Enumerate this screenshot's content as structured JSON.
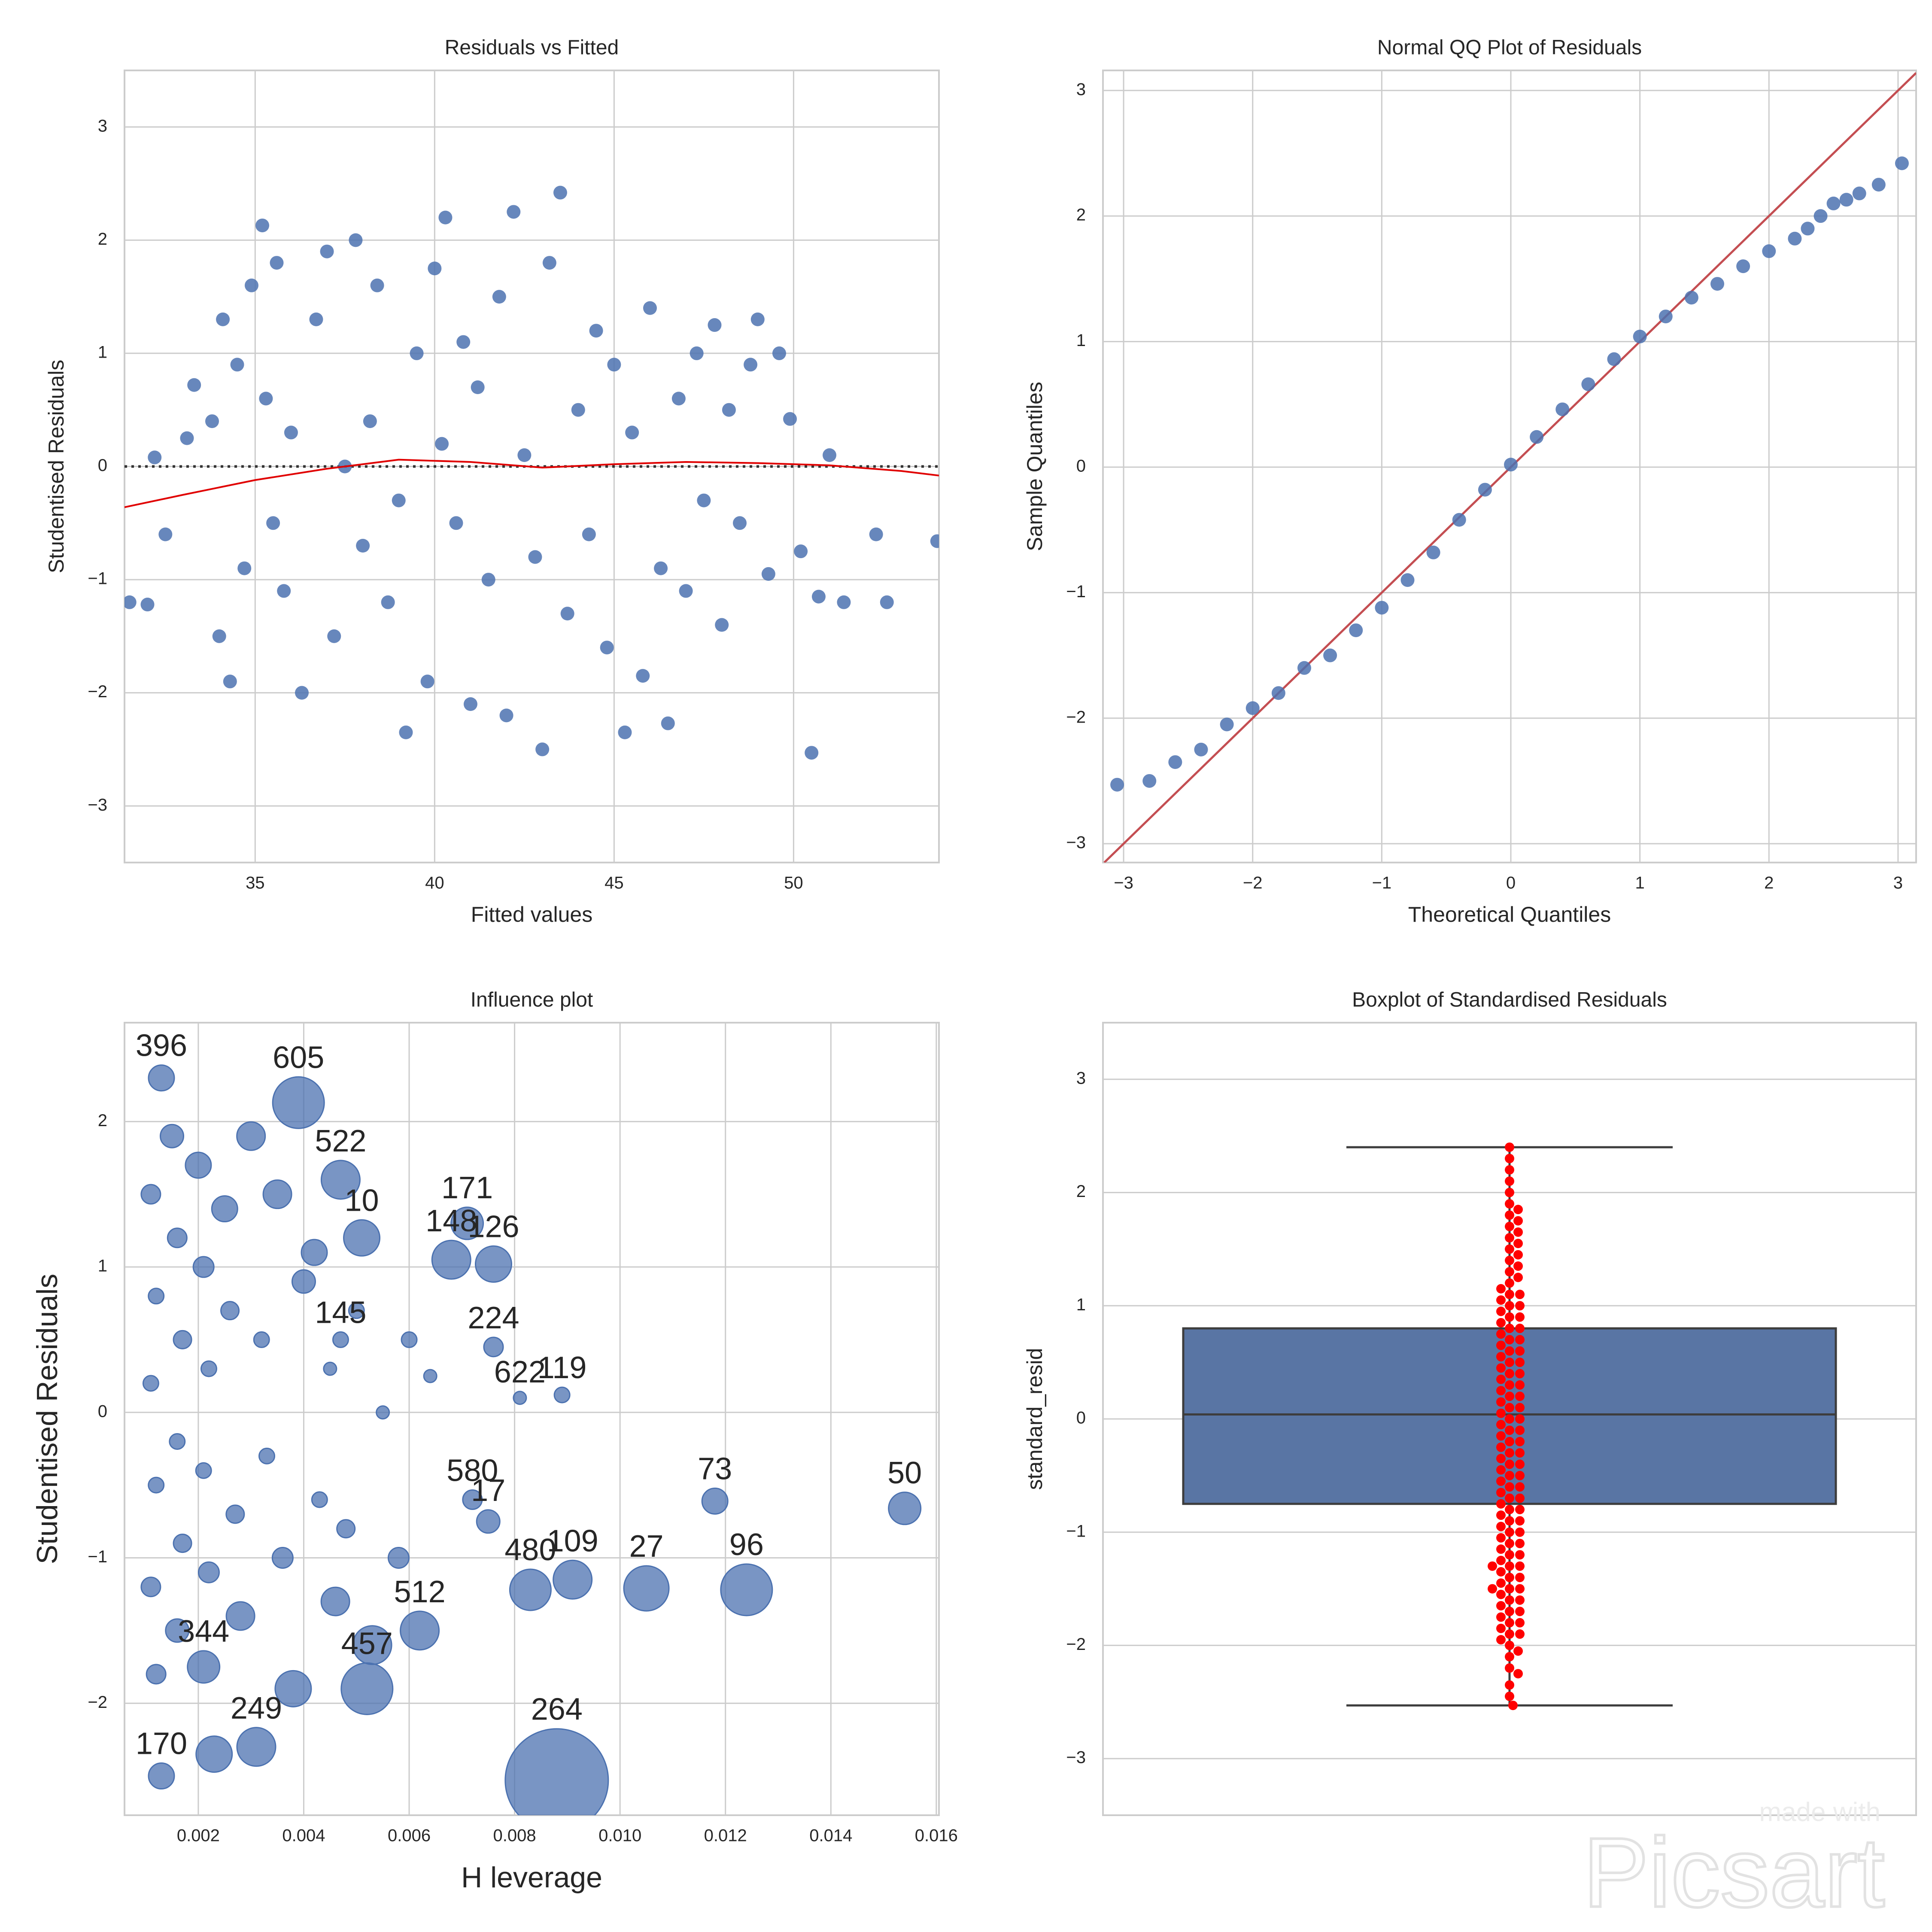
{
  "chart_data": [
    {
      "type": "scatter",
      "title": "Residuals vs Fitted",
      "xlabel": "Fitted values",
      "ylabel": "Studentised Residuals",
      "xlim": [
        31.36,
        54.05
      ],
      "ylim": [
        -3.5,
        3.5
      ],
      "grid": true,
      "xticks": [
        35,
        40,
        45,
        50
      ],
      "yticks": [
        {
          "value": -3,
          "label": "−3"
        },
        {
          "value": -2,
          "label": "−2"
        },
        {
          "value": -1,
          "label": "−1"
        },
        0,
        1,
        2,
        3
      ],
      "points": {
        "color": "#4c72b0",
        "x": [
          31.5,
          32,
          32.2,
          32.5,
          33.1,
          33.3,
          33.8,
          34.0,
          34.1,
          34.3,
          34.5,
          34.7,
          34.9,
          35.2,
          35.3,
          35.5,
          35.6,
          35.8,
          36.0,
          36.3,
          36.7,
          37.0,
          37.2,
          37.5,
          37.8,
          38.0,
          38.2,
          38.4,
          38.7,
          39.0,
          39.2,
          39.5,
          39.8,
          40.0,
          40.2,
          40.3,
          40.6,
          40.8,
          41.0,
          41.2,
          41.5,
          41.8,
          42.0,
          42.2,
          42.5,
          42.8,
          43.0,
          43.2,
          43.5,
          43.7,
          44.0,
          44.3,
          44.5,
          44.8,
          45.0,
          45.3,
          45.5,
          45.8,
          46.0,
          46.3,
          46.5,
          46.8,
          47.0,
          47.3,
          47.5,
          47.8,
          48.0,
          48.2,
          48.5,
          48.8,
          49.0,
          49.3,
          49.6,
          49.9,
          50.2,
          50.5,
          50.7,
          51.0,
          51.4,
          52.3,
          52.6,
          54.0
        ],
        "y": [
          -1.2,
          -1.22,
          0.08,
          -0.6,
          0.25,
          0.72,
          0.4,
          -1.5,
          1.3,
          -1.9,
          0.9,
          -0.9,
          1.6,
          2.13,
          0.6,
          -0.5,
          1.8,
          -1.1,
          0.3,
          -2.0,
          1.3,
          1.9,
          -1.5,
          0.0,
          2.0,
          -0.7,
          0.4,
          1.6,
          -1.2,
          -0.3,
          -2.35,
          1.0,
          -1.9,
          1.75,
          0.2,
          2.2,
          -0.5,
          1.1,
          -2.1,
          0.7,
          -1.0,
          1.5,
          -2.2,
          2.25,
          0.1,
          -0.8,
          -2.5,
          1.8,
          2.42,
          -1.3,
          0.5,
          -0.6,
          1.2,
          -1.6,
          0.9,
          -2.35,
          0.3,
          -1.85,
          1.4,
          -0.9,
          -2.27,
          0.6,
          -1.1,
          1.0,
          -0.3,
          1.25,
          -1.4,
          0.5,
          -0.5,
          0.9,
          1.3,
          -0.95,
          1.0,
          0.42,
          -0.75,
          -2.53,
          -1.15,
          0.1,
          -1.2,
          -0.6,
          -1.2,
          -0.66
        ]
      },
      "reference_y": 0,
      "curve": {
        "color": "#e00000",
        "x": [
          31.36,
          33,
          35,
          37,
          39,
          41,
          43,
          45,
          47,
          49,
          51,
          53,
          54.05
        ],
        "y": [
          -0.36,
          -0.25,
          -0.12,
          -0.02,
          0.06,
          0.04,
          -0.01,
          0.02,
          0.04,
          0.03,
          0.01,
          -0.04,
          -0.08
        ]
      }
    },
    {
      "type": "scatter",
      "title": "Normal QQ Plot of Residuals",
      "xlabel": "Theoretical Quantiles",
      "ylabel": "Sample Quantiles",
      "xlim": [
        -3.16,
        3.14
      ],
      "ylim": [
        -3.15,
        3.16
      ],
      "grid": true,
      "xticks": [
        {
          "value": -3,
          "label": "−3"
        },
        {
          "value": -2,
          "label": "−2"
        },
        {
          "value": -1,
          "label": "−1"
        },
        0,
        1,
        2,
        3
      ],
      "yticks": [
        {
          "value": -3,
          "label": "−3"
        },
        {
          "value": -2,
          "label": "−2"
        },
        {
          "value": -1,
          "label": "−1"
        },
        0,
        1,
        2,
        3
      ],
      "points": {
        "color": "#4c72b0",
        "x": [
          -3.05,
          -2.8,
          -2.6,
          -2.4,
          -2.2,
          -2.0,
          -1.8,
          -1.6,
          -1.4,
          -1.2,
          -1.0,
          -0.8,
          -0.6,
          -0.4,
          -0.2,
          0.0,
          0.2,
          0.4,
          0.6,
          0.8,
          1.0,
          1.2,
          1.4,
          1.6,
          1.8,
          2.0,
          2.2,
          2.3,
          2.4,
          2.5,
          2.6,
          2.7,
          2.85,
          3.03
        ],
        "y": [
          -2.53,
          -2.5,
          -2.35,
          -2.25,
          -2.05,
          -1.92,
          -1.8,
          -1.6,
          -1.5,
          -1.3,
          -1.12,
          -0.9,
          -0.68,
          -0.42,
          -0.18,
          0.02,
          0.24,
          0.46,
          0.66,
          0.86,
          1.04,
          1.2,
          1.35,
          1.46,
          1.6,
          1.72,
          1.82,
          1.9,
          2.0,
          2.1,
          2.13,
          2.18,
          2.25,
          2.42
        ]
      },
      "reference_line": {
        "color": "#c44e52",
        "x": [
          -3.15,
          3.14
        ],
        "y": [
          -3.15,
          3.14
        ]
      }
    },
    {
      "type": "bubble",
      "title": "Influence plot",
      "xlabel": "H leverage",
      "ylabel": "Studentised Residuals",
      "xlim": [
        0.0006,
        0.01605
      ],
      "ylim": [
        -2.77,
        2.68
      ],
      "grid": true,
      "xticks": [
        0.002,
        0.004,
        0.006,
        0.008,
        {
          "value": 0.01,
          "label": "0.010"
        },
        0.012,
        0.014,
        0.016
      ],
      "yticks": [
        {
          "value": -2,
          "label": "−2"
        },
        {
          "value": -1,
          "label": "−1"
        },
        0,
        1,
        2
      ],
      "points": {
        "color": "#4c72b0",
        "x": [
          0.0011,
          0.0012,
          0.0011,
          0.0012,
          0.0011,
          0.0012,
          0.0015,
          0.0016,
          0.0017,
          0.0016,
          0.0017,
          0.0016,
          0.002,
          0.0021,
          0.0022,
          0.0021,
          0.0022,
          0.0023,
          0.0025,
          0.0026,
          0.0027,
          0.0028,
          0.003,
          0.0032,
          0.0033,
          0.0035,
          0.0036,
          0.0038,
          0.004,
          0.0042,
          0.0043,
          0.0045,
          0.0046,
          0.0048,
          0.005,
          0.0053,
          0.0055,
          0.0058,
          0.006,
          0.0064,
          0.0013,
          0.0039,
          0.0047,
          0.0071,
          0.0068,
          0.0076,
          0.0051,
          0.0081,
          0.0089,
          0.0118,
          0.0154,
          0.0124,
          0.0105,
          0.0083,
          0.0091,
          0.0088,
          0.0052,
          0.0031,
          0.0013,
          0.0072,
          0.0075,
          0.0062,
          0.0047,
          0.0076,
          0.0021
        ],
        "y": [
          1.5,
          0.8,
          0.2,
          -0.5,
          -1.2,
          -1.8,
          1.9,
          1.2,
          0.5,
          -0.2,
          -0.9,
          -1.5,
          1.7,
          1.0,
          0.3,
          -0.4,
          -1.1,
          -2.35,
          1.4,
          0.7,
          -0.7,
          -1.4,
          1.9,
          0.5,
          -0.3,
          1.5,
          -1.0,
          -1.9,
          0.9,
          1.1,
          -0.6,
          0.3,
          -1.3,
          -0.8,
          0.7,
          -1.6,
          0.0,
          -1.0,
          0.5,
          0.25,
          2.3,
          2.13,
          1.6,
          1.3,
          1.05,
          1.02,
          1.2,
          0.1,
          0.12,
          -0.61,
          -0.66,
          -1.22,
          -1.21,
          -1.22,
          -1.15,
          -2.53,
          -1.9,
          -2.3,
          -2.5,
          -0.6,
          -0.75,
          -1.5,
          0.5,
          0.45,
          -1.75
        ],
        "sizes": [
          15,
          12,
          12,
          12,
          15,
          15,
          18,
          15,
          14,
          12,
          14,
          18,
          20,
          16,
          12,
          12,
          16,
          28,
          20,
          14,
          14,
          22,
          22,
          12,
          12,
          22,
          16,
          28,
          18,
          20,
          12,
          10,
          22,
          14,
          12,
          30,
          10,
          16,
          12,
          10,
          20,
          40,
          30,
          25,
          30,
          28,
          28,
          10,
          12,
          20,
          25,
          40,
          35,
          32,
          30,
          80,
          40,
          30,
          20,
          15,
          18,
          30,
          12,
          15,
          25
        ],
        "labels": [
          null,
          null,
          null,
          null,
          null,
          null,
          null,
          null,
          null,
          null,
          null,
          null,
          null,
          null,
          null,
          null,
          null,
          null,
          null,
          null,
          null,
          null,
          null,
          null,
          null,
          null,
          null,
          null,
          null,
          null,
          null,
          null,
          null,
          null,
          null,
          null,
          null,
          null,
          null,
          null,
          "396",
          "605",
          "522",
          "171",
          "148",
          "126",
          "10",
          "622",
          "119",
          "73",
          "50",
          "96",
          "27",
          "480",
          "109",
          "264",
          "457",
          "249",
          "170",
          "580",
          "17",
          "512",
          "145",
          "224",
          "344"
        ]
      }
    },
    {
      "type": "box",
      "title": "Boxplot of Standardised Residuals",
      "ylabel": "standard_resid",
      "ylim": [
        -3.5,
        3.5
      ],
      "grid": true,
      "yticks": [
        {
          "value": -3,
          "label": "−3"
        },
        {
          "value": -2,
          "label": "−2"
        },
        {
          "value": -1,
          "label": "−1"
        },
        0,
        1,
        2,
        3
      ],
      "box": {
        "color": "#5975a4",
        "whisker_low": -2.53,
        "q1": -0.75,
        "median": 0.04,
        "q3": 0.8,
        "whisker_high": 2.4
      },
      "swarm": {
        "color": "#ff0000",
        "values": [
          -2.53,
          -2.45,
          -2.35,
          -2.25,
          -2.2,
          -2.1,
          -2.05,
          -2.0,
          -1.95,
          -1.9,
          -1.9,
          -1.85,
          -1.8,
          -1.8,
          -1.75,
          -1.7,
          -1.7,
          -1.65,
          -1.6,
          -1.6,
          -1.55,
          -1.5,
          -1.5,
          -1.5,
          -1.45,
          -1.4,
          -1.4,
          -1.35,
          -1.3,
          -1.3,
          -1.3,
          -1.25,
          -1.2,
          -1.2,
          -1.15,
          -1.1,
          -1.1,
          -1.05,
          -1.0,
          -1.0,
          -0.95,
          -0.9,
          -0.9,
          -0.85,
          -0.8,
          -0.8,
          -0.75,
          -0.7,
          -0.7,
          -0.65,
          -0.6,
          -0.6,
          -0.55,
          -0.5,
          -0.5,
          -0.45,
          -0.4,
          -0.4,
          -0.35,
          -0.3,
          -0.3,
          -0.25,
          -0.2,
          -0.2,
          -0.15,
          -0.1,
          -0.1,
          -0.05,
          0.0,
          0.0,
          0.05,
          0.1,
          0.1,
          0.15,
          0.2,
          0.2,
          0.25,
          0.3,
          0.3,
          0.35,
          0.4,
          0.4,
          0.45,
          0.5,
          0.5,
          0.55,
          0.6,
          0.6,
          0.65,
          0.7,
          0.7,
          0.75,
          0.8,
          0.8,
          0.85,
          0.9,
          0.9,
          0.95,
          1.0,
          1.0,
          1.05,
          1.1,
          1.1,
          1.15,
          1.2,
          1.25,
          1.3,
          1.35,
          1.4,
          1.45,
          1.5,
          1.55,
          1.6,
          1.65,
          1.7,
          1.75,
          1.8,
          1.85,
          1.9,
          2.0,
          2.1,
          2.2,
          2.3,
          2.4
        ]
      }
    }
  ],
  "watermark": {
    "line1": "made with",
    "line2": "Picsart"
  }
}
